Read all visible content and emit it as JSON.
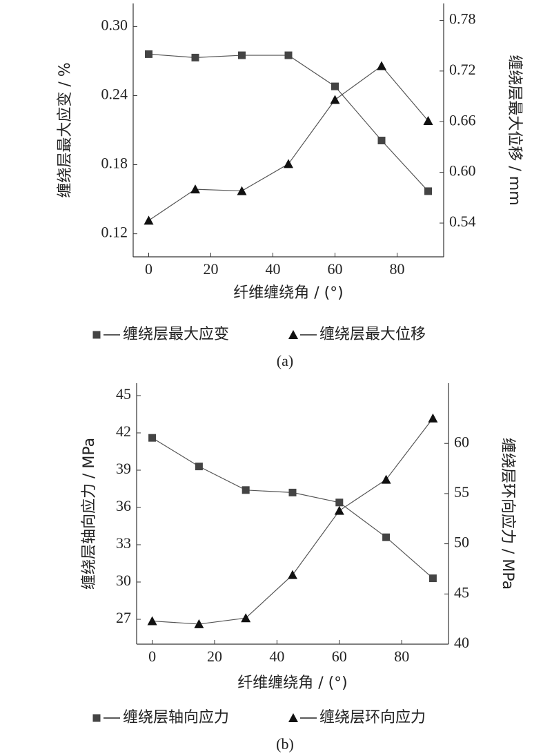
{
  "chart_data": [
    {
      "type": "line",
      "x_label": "纤维缠绕角 / (°)",
      "y_label": "缠绕层最大应变 / %",
      "y2_label": "缠绕层最大位移 / mm",
      "caption": "(a)",
      "x": [
        0,
        15,
        30,
        45,
        60,
        75,
        90
      ],
      "xlim": [
        -5,
        95
      ],
      "xticks": [
        0,
        20,
        40,
        60,
        80
      ],
      "ylim": [
        0.1,
        0.32
      ],
      "yticks": [
        {
          "value": 0.3,
          "label": "0.30"
        },
        0.24,
        0.18,
        0.12
      ],
      "y2lim": [
        0.5,
        0.8
      ],
      "y2ticks": [
        0.78,
        0.72,
        0.66,
        {
          "value": 0.6,
          "label": "0.60"
        },
        0.54
      ],
      "series": [
        {
          "name": "缠绕层最大应变",
          "marker": "square",
          "color": "#444444",
          "values": [
            0.276,
            0.273,
            0.275,
            0.275,
            0.248,
            0.201,
            0.157
          ]
        },
        {
          "name": "缠绕层最大位移",
          "marker": "triangle",
          "axis": "y2",
          "color": "#111111",
          "values": [
            0.543,
            0.58,
            0.578,
            0.61,
            0.686,
            0.726,
            0.661
          ]
        }
      ]
    },
    {
      "type": "line",
      "x_label": "纤维缠绕角 / (°)",
      "y_label": "缠绕层轴向应力 / MPa",
      "y2_label": "缠绕层环向应力 / MPa",
      "caption": "(b)",
      "x": [
        0,
        15,
        30,
        45,
        60,
        75,
        90
      ],
      "xlim": [
        -5,
        95
      ],
      "xticks": [
        0,
        20,
        40,
        60,
        80
      ],
      "ylim": [
        25,
        46
      ],
      "yticks": [
        45,
        42,
        39,
        36,
        33,
        30,
        27
      ],
      "y2lim": [
        40,
        66
      ],
      "y2ticks": [
        60,
        55,
        50,
        45,
        40
      ],
      "series": [
        {
          "name": "缠绕层轴向应力",
          "marker": "square",
          "color": "#444444",
          "values": [
            41.6,
            39.3,
            37.4,
            37.2,
            36.4,
            33.6,
            30.3
          ]
        },
        {
          "name": "缠绕层环向应力",
          "marker": "triangle",
          "axis": "y2",
          "color": "#111111",
          "values": [
            42.3,
            42.0,
            42.6,
            46.9,
            53.3,
            56.4,
            62.5
          ]
        }
      ]
    }
  ]
}
